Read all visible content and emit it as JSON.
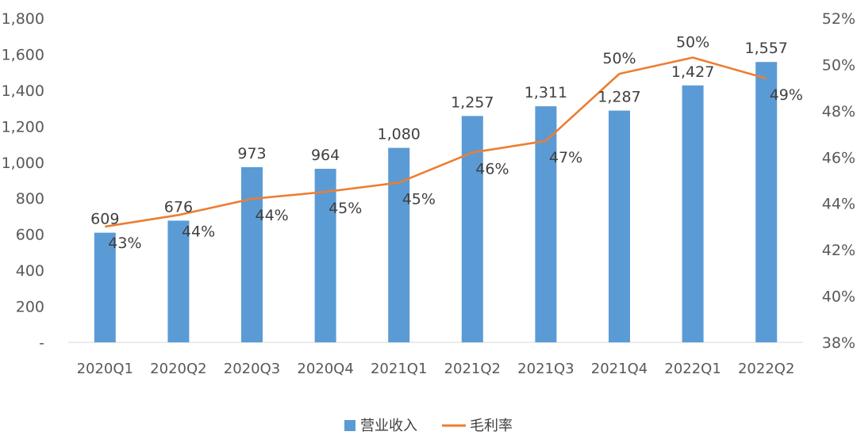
{
  "chart_data": {
    "type": "bar",
    "categories": [
      "2020Q1",
      "2020Q2",
      "2020Q3",
      "2020Q4",
      "2021Q1",
      "2021Q2",
      "2021Q3",
      "2021Q4",
      "2022Q1",
      "2022Q2"
    ],
    "series": [
      {
        "name": "营业收入",
        "type": "bar",
        "axis": "left",
        "color": "#5B9BD5",
        "values": [
          609,
          676,
          973,
          964,
          1080,
          1257,
          1311,
          1287,
          1427,
          1557
        ],
        "labels": [
          "609",
          "676",
          "973",
          "964",
          "1,080",
          "1,257",
          "1,311",
          "1,287",
          "1,427",
          "1,557"
        ]
      },
      {
        "name": "毛利率",
        "type": "line",
        "axis": "right",
        "color": "#ED7D31",
        "values": [
          43.0,
          43.5,
          44.2,
          44.5,
          44.9,
          46.2,
          46.7,
          49.6,
          50.3,
          49.4
        ],
        "labels": [
          "43%",
          "44%",
          "44%",
          "45%",
          "45%",
          "46%",
          "47%",
          "50%",
          "50%",
          "49%"
        ]
      }
    ],
    "y_left": {
      "lim": [
        0,
        1800
      ],
      "ticks": [
        0,
        200,
        400,
        600,
        800,
        1000,
        1200,
        1400,
        1600,
        1800
      ],
      "tick_labels": [
        "-",
        "200",
        "400",
        "600",
        "800",
        "1,000",
        "1,200",
        "1,400",
        "1,600",
        "1,800"
      ]
    },
    "y_right": {
      "lim": [
        38,
        52
      ],
      "ticks": [
        38,
        40,
        42,
        44,
        46,
        48,
        50,
        52
      ],
      "tick_labels": [
        "38%",
        "40%",
        "42%",
        "44%",
        "46%",
        "48%",
        "50%",
        "52%"
      ]
    },
    "grid": false,
    "legend": "bottom-center"
  }
}
